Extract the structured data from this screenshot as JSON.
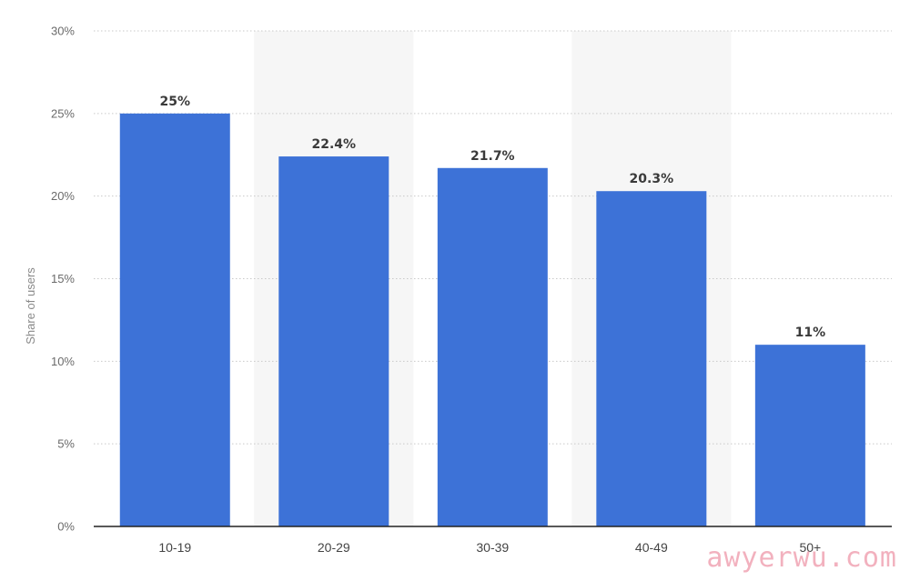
{
  "chart_data": {
    "type": "bar",
    "categories": [
      "10-19",
      "20-29",
      "30-39",
      "40-49",
      "50+"
    ],
    "values": [
      25,
      22.4,
      21.7,
      20.3,
      11
    ],
    "value_labels": [
      "25%",
      "22.4%",
      "21.7%",
      "20.3%",
      "11%"
    ],
    "title": "",
    "xlabel": "",
    "ylabel": "Share of users",
    "ylim": [
      0,
      30
    ],
    "yticks": [
      0,
      5,
      10,
      15,
      20,
      25,
      30
    ],
    "ytick_labels": [
      "0%",
      "5%",
      "10%",
      "15%",
      "20%",
      "25%",
      "30%"
    ],
    "grid": true,
    "bar_color": "#3d72d7",
    "band_color": "#f6f6f6"
  },
  "watermark": "awyerwu.com"
}
